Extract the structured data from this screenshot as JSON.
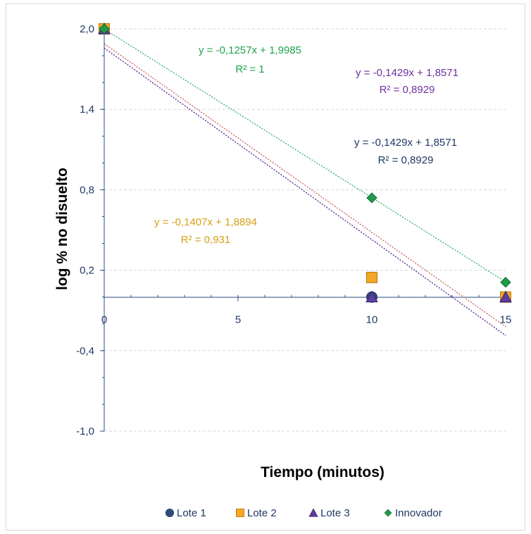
{
  "chart_data": {
    "type": "scatter",
    "xlabel": "Tiempo (minutos)",
    "ylabel": "log % no disuelto",
    "xlim": [
      0,
      15
    ],
    "ylim": [
      -1.0,
      2.0
    ],
    "x_ticks": [
      "0",
      "5",
      "10",
      "15"
    ],
    "y_ticks": [
      "2,0",
      "1,4",
      "0,8",
      "0,2",
      "-0,4",
      "-1,0"
    ],
    "x_tick_values": [
      0,
      5,
      10,
      15
    ],
    "y_tick_values": [
      2.0,
      1.4,
      0.8,
      0.2,
      -0.4,
      -1.0
    ],
    "grid": "horizontal dashed",
    "legend_position": "bottom",
    "series": [
      {
        "name": "Lote 1",
        "marker": "circle",
        "color": "#2e4b7c",
        "points": [
          [
            0,
            2.0
          ],
          [
            10,
            0.0
          ],
          [
            15,
            0.0
          ]
        ],
        "trend": {
          "slope": -0.1429,
          "intercept": 1.8571,
          "color": "#1f3864"
        }
      },
      {
        "name": "Lote 2",
        "marker": "square",
        "color": "#f5a623",
        "points": [
          [
            0,
            2.0
          ],
          [
            10,
            0.146
          ],
          [
            15,
            0.0
          ]
        ],
        "trend": {
          "slope": -0.1407,
          "intercept": 1.8894,
          "color": "#c0504d"
        }
      },
      {
        "name": "Lote 3",
        "marker": "triangle",
        "color": "#5b3e9e",
        "points": [
          [
            0,
            2.0
          ],
          [
            10,
            0.0
          ],
          [
            15,
            0.0
          ]
        ],
        "trend": {
          "slope": -0.1429,
          "intercept": 1.8571,
          "color": "#7030a0"
        }
      },
      {
        "name": "Innovador",
        "marker": "diamond",
        "color": "#1e9b4b",
        "points": [
          [
            0,
            2.0
          ],
          [
            10,
            0.74
          ],
          [
            15,
            0.11
          ]
        ],
        "trend": {
          "slope": -0.1257,
          "intercept": 1.9985,
          "color": "#21a65b"
        }
      }
    ],
    "annotations": [
      {
        "line1": "y = -0,1257x + 1,9985",
        "line2": "R² = 1",
        "color": "#1ea34d"
      },
      {
        "line1": "y = -0,1429x + 1,8571",
        "line2": "R² = 0,8929",
        "color": "#7030a0"
      },
      {
        "line1": "y = -0,1429x + 1,8571",
        "line2": "R² = 0,8929",
        "color": "#1f3864"
      },
      {
        "line1": "y = -0,1407x + 1,8894",
        "line2": "R² = 0,931",
        "color": "#d4a017"
      }
    ]
  }
}
